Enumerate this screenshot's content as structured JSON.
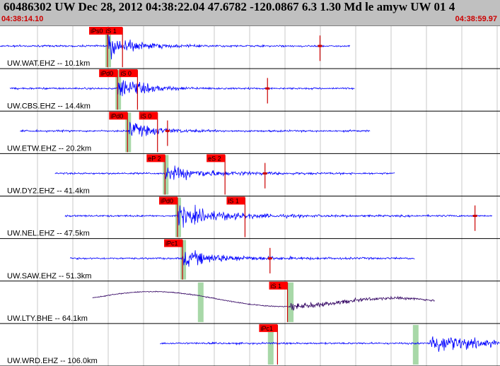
{
  "header": {
    "title": "60486302  UW Dec 28, 2012 04:38:22.04    47.6782 -120.0867   6.3 1.30 Md le amyw UW 01    4",
    "time_start": "04:38:14.10",
    "time_end": "04:38:59.97"
  },
  "colors": {
    "trace": "#0000ff",
    "trace_broadband": "#300060",
    "pick_flag": "#ff0000",
    "pick_line": "#cc0000",
    "window": "#a8d8a8",
    "grid": "#c8c8c8"
  },
  "panels": [
    {
      "label": "UW.WAT.EHZ -- 10.1km",
      "trace_start": 0.0,
      "trace_end": 0.7,
      "onset": 0.215,
      "amp": 0.95,
      "kind": "short",
      "picks": [
        {
          "label": "iPs0",
          "t": 0.215
        },
        {
          "label": "iS 1",
          "t": 0.245
        }
      ],
      "windows": [
        0.215
      ],
      "spike": 0.64
    },
    {
      "label": "UW.CBS.EHZ -- 14.4km",
      "trace_start": 0.02,
      "trace_end": 0.71,
      "onset": 0.235,
      "amp": 0.9,
      "kind": "short",
      "picks": [
        {
          "label": "iPd0",
          "t": 0.235
        },
        {
          "label": "iS 0",
          "t": 0.275
        }
      ],
      "windows": [
        0.235
      ],
      "spike": 0.535
    },
    {
      "label": "UW.ETW.EHZ -- 20.2km",
      "trace_start": 0.04,
      "trace_end": 0.74,
      "onset": 0.255,
      "amp": 0.7,
      "kind": "short",
      "picks": [
        {
          "label": "iPd0",
          "t": 0.255
        },
        {
          "label": "iS 0",
          "t": 0.315
        }
      ],
      "windows": [
        0.255
      ],
      "spike": 0.335
    },
    {
      "label": "UW.DY2.EHZ -- 41.4km",
      "trace_start": 0.11,
      "trace_end": 0.79,
      "onset": 0.33,
      "amp": 0.55,
      "kind": "short",
      "picks": [
        {
          "label": "eP 2",
          "t": 0.33
        },
        {
          "label": "eS 2",
          "t": 0.45
        }
      ],
      "windows": [
        0.33
      ],
      "spike": 0.53
    },
    {
      "label": "UW.NEL.EHZ -- 47.5km",
      "trace_start": 0.13,
      "trace_end": 0.985,
      "onset": 0.355,
      "amp": 0.8,
      "kind": "short",
      "picks": [
        {
          "label": "iPd0",
          "t": 0.355
        },
        {
          "label": "iS 1",
          "t": 0.49
        }
      ],
      "windows": [
        0.355
      ],
      "spike": 0.95
    },
    {
      "label": "UW.SAW.EHZ -- 51.3km",
      "trace_start": 0.14,
      "trace_end": 0.83,
      "onset": 0.365,
      "amp": 0.6,
      "kind": "short",
      "picks": [
        {
          "label": "iPc1",
          "t": 0.365
        }
      ],
      "windows": [
        0.365
      ],
      "spike": 0.54
    },
    {
      "label": "UW.LTY.BHE -- 64.1km",
      "trace_start": 0.185,
      "trace_end": 0.87,
      "onset": 0.58,
      "amp": 0.5,
      "kind": "broad",
      "picks": [
        {
          "label": "iS 1",
          "t": 0.575
        }
      ],
      "windows": [
        0.4,
        0.58
      ],
      "spike": 0
    },
    {
      "label": "UW.WRD.EHZ -- 106.0km",
      "trace_start": 0.32,
      "trace_end": 1.0,
      "onset": 0.86,
      "amp": 0.85,
      "kind": "short",
      "picks": [
        {
          "label": "iPc1",
          "t": 0.555
        }
      ],
      "windows": [
        0.54,
        0.83
      ],
      "spike": 0
    }
  ]
}
